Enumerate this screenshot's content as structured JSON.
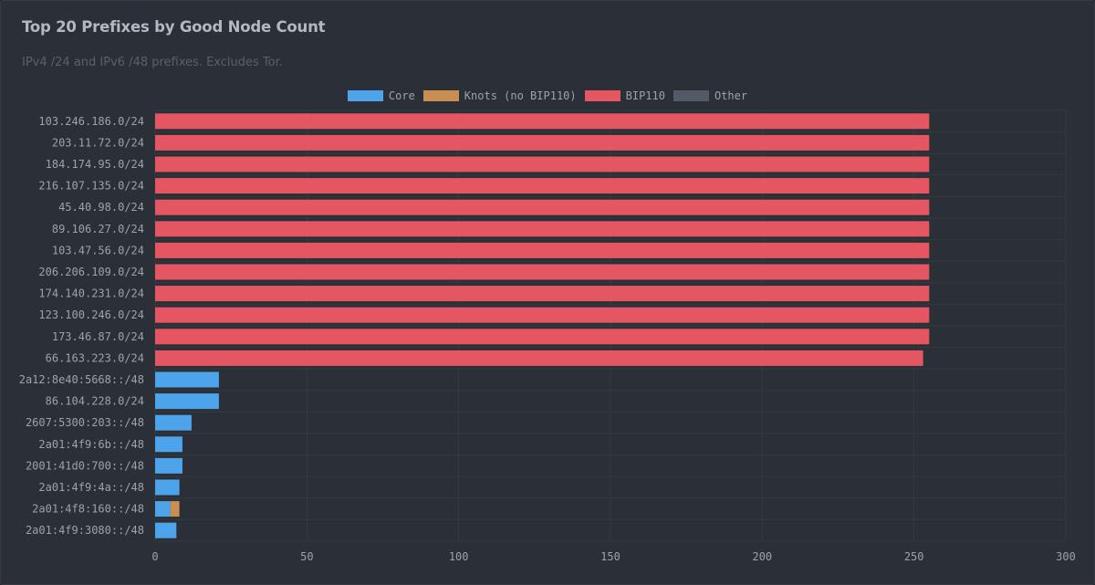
{
  "chart_data": {
    "type": "bar",
    "orientation": "horizontal",
    "stacked": true,
    "title": "Top 20 Prefixes by Good Node Count",
    "subtitle": "IPv4 /24 and IPv6 /48 prefixes. Excludes Tor.",
    "categories": [
      "103.246.186.0/24",
      "203.11.72.0/24",
      "184.174.95.0/24",
      "216.107.135.0/24",
      "45.40.98.0/24",
      "89.106.27.0/24",
      "103.47.56.0/24",
      "206.206.109.0/24",
      "174.140.231.0/24",
      "123.100.246.0/24",
      "173.46.87.0/24",
      "66.163.223.0/24",
      "2a12:8e40:5668::/48",
      "86.104.228.0/24",
      "2607:5300:203::/48",
      "2a01:4f9:6b::/48",
      "2001:41d0:700::/48",
      "2a01:4f9:4a::/48",
      "2a01:4f8:160::/48",
      "2a01:4f9:3080::/48"
    ],
    "series": [
      {
        "name": "Core",
        "color": "#4ea4ea",
        "values": [
          0,
          0,
          0,
          0,
          0,
          0,
          0,
          0,
          0,
          0,
          0,
          0,
          21,
          21,
          12,
          9,
          9,
          8,
          5,
          7
        ]
      },
      {
        "name": "Knots (no BIP110)",
        "color": "#c98e52",
        "values": [
          0,
          0,
          0,
          0,
          0,
          0,
          0,
          0,
          0,
          0,
          0,
          0,
          0,
          0,
          0,
          0,
          0,
          0,
          3,
          0
        ]
      },
      {
        "name": "BIP110",
        "color": "#e45662",
        "values": [
          255,
          255,
          255,
          255,
          255,
          255,
          255,
          255,
          255,
          255,
          255,
          253,
          0,
          0,
          0,
          0,
          0,
          0,
          0,
          0
        ]
      },
      {
        "name": "Other",
        "color": "#525a67",
        "values": [
          0,
          0,
          0,
          0,
          0,
          0,
          0,
          0,
          0,
          0,
          0,
          0,
          0,
          0,
          0,
          0,
          0,
          0,
          0,
          0
        ]
      }
    ],
    "xlim": [
      0,
      300
    ],
    "xticks": [
      0,
      50,
      100,
      150,
      200,
      250,
      300
    ],
    "grid": true,
    "legend_position": "top-center"
  }
}
